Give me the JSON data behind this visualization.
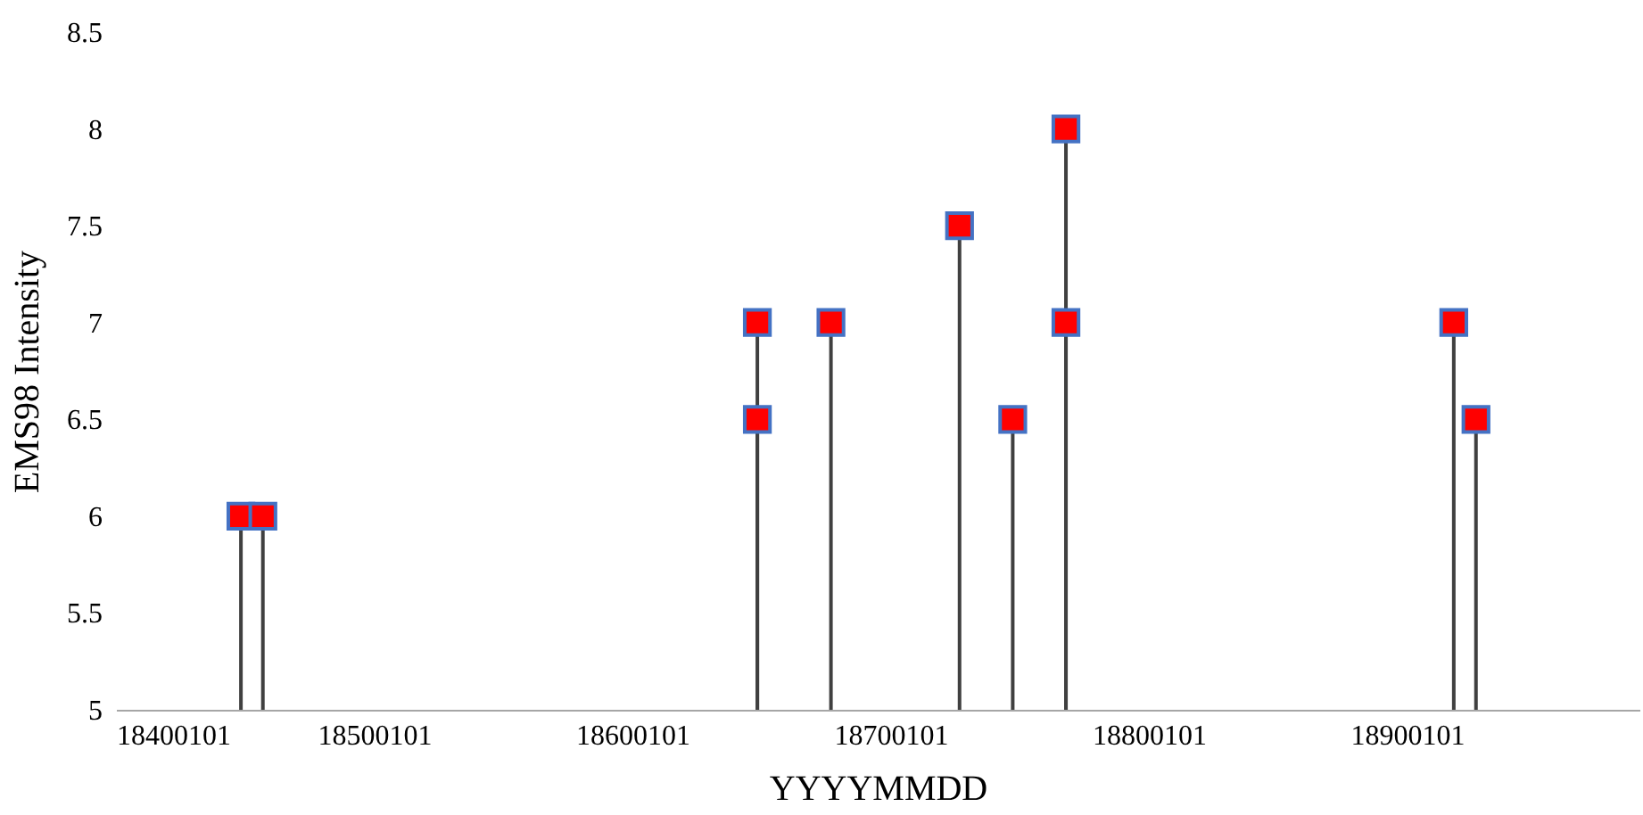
{
  "chart_data": {
    "type": "lollipop",
    "xlabel": "YYYYMMDD",
    "ylabel": "EMS98 Intensity",
    "x": [
      18448500,
      18457000,
      18648500,
      18648500,
      18677000,
      18726800,
      18747400,
      18768000,
      18768000,
      18918200,
      18926800
    ],
    "series": [
      {
        "color": "#ff0000",
        "values": [
          6,
          6,
          6.5,
          7,
          7,
          7.5,
          6.5,
          7,
          8,
          7,
          6.5
        ]
      }
    ],
    "xlim": [
      18400101,
      18990101
    ],
    "xticks": [
      18400101,
      18500101,
      18600101,
      18700101,
      18800101,
      18900101
    ],
    "ylim": [
      5,
      8.5
    ],
    "yticks": [
      5,
      5.5,
      6,
      6.5,
      7,
      7.5,
      8,
      8.5
    ],
    "marker": "square",
    "grid": false,
    "legend": false
  }
}
